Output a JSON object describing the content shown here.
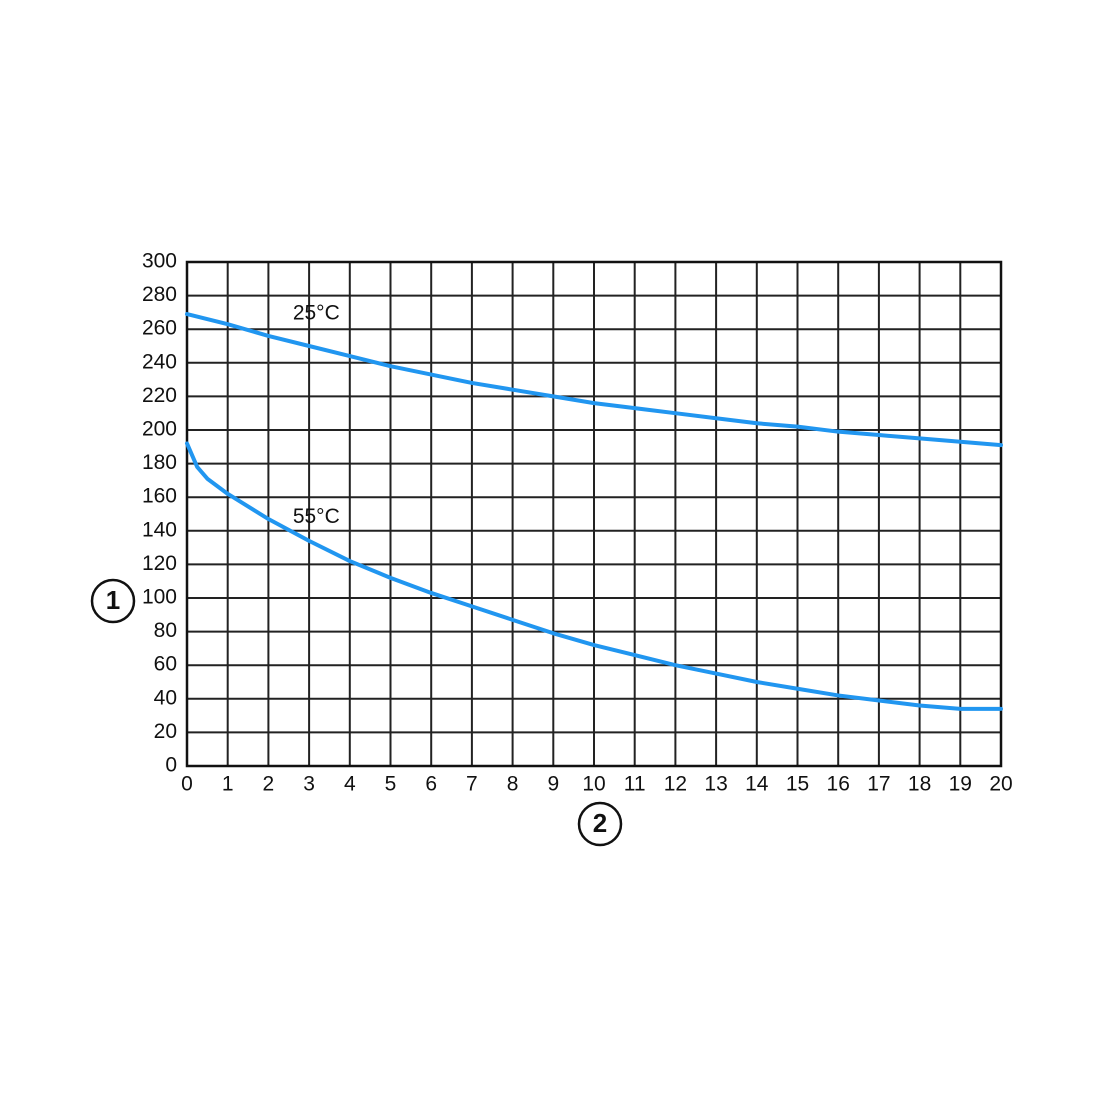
{
  "chart_data": {
    "type": "line",
    "xlabel": "2",
    "ylabel": "1",
    "xlim": [
      0,
      20
    ],
    "ylim": [
      0,
      300
    ],
    "xticks": [
      0,
      1,
      2,
      3,
      4,
      5,
      6,
      7,
      8,
      9,
      10,
      11,
      12,
      13,
      14,
      15,
      16,
      17,
      18,
      19,
      20
    ],
    "yticks": [
      0,
      20,
      40,
      60,
      80,
      100,
      120,
      140,
      160,
      180,
      200,
      220,
      240,
      260,
      280,
      300
    ],
    "grid": true,
    "series": [
      {
        "name": "25°C",
        "color": "#2196f0",
        "x": [
          0,
          1,
          2,
          3,
          4,
          5,
          6,
          7,
          8,
          9,
          10,
          11,
          12,
          13,
          14,
          15,
          16,
          17,
          18,
          19,
          20
        ],
        "values": [
          269,
          263,
          256,
          250,
          244,
          238,
          233,
          228,
          224,
          220,
          216,
          213,
          210,
          207,
          204,
          202,
          199,
          197,
          195,
          193,
          191
        ]
      },
      {
        "name": "55°C",
        "color": "#2196f0",
        "x": [
          0,
          0.25,
          0.5,
          1,
          2,
          3,
          4,
          5,
          6,
          7,
          8,
          9,
          10,
          11,
          12,
          13,
          14,
          15,
          16,
          17,
          18,
          19,
          20
        ],
        "values": [
          192,
          178,
          171,
          162,
          147,
          134,
          122,
          112,
          103,
          95,
          87,
          79,
          72,
          66,
          60,
          55,
          50,
          46,
          42,
          39,
          36,
          34,
          34
        ]
      }
    ]
  }
}
